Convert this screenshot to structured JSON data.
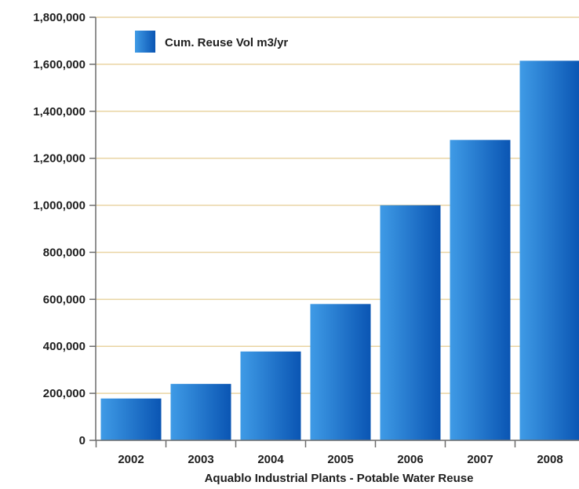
{
  "chart_data": {
    "type": "bar",
    "title": "",
    "xlabel": "Aquablo Industrial Plants - Potable Water Reuse",
    "ylabel": "",
    "categories": [
      "2002",
      "2003",
      "2004",
      "2005",
      "2006",
      "2007",
      "2008"
    ],
    "series": [
      {
        "name": "Cum. Reuse Vol m3/yr",
        "values": [
          178000,
          240000,
          378000,
          580000,
          1000000,
          1278000,
          1615000
        ]
      }
    ],
    "ylim": [
      0,
      1800000
    ],
    "yticks": [
      0,
      200000,
      400000,
      600000,
      800000,
      1000000,
      1200000,
      1400000,
      1600000,
      1800000
    ],
    "ytick_labels": [
      "0",
      "200,000",
      "400,000",
      "600,000",
      "800,000",
      "1,000,000",
      "1,200,000",
      "1,400,000",
      "1,600,000",
      "1,800,000"
    ],
    "grid": true,
    "legend_position": "top-left",
    "colors": {
      "bar_light": "#3f9be6",
      "bar_dark": "#0a55b3",
      "grid": "#e9d4a2",
      "axis": "#6c6c6c"
    }
  }
}
